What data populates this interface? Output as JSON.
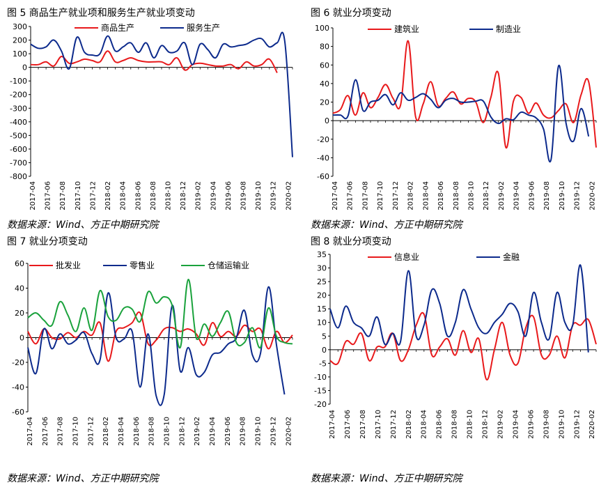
{
  "chart_data": [
    {
      "type": "line",
      "title": "图 5   商品生产就业项和服务生产就业项变动",
      "source": "数据来源：Wind、方正中期研究院",
      "ylim": [
        -800,
        300
      ],
      "yticks": [
        300,
        200,
        100,
        0,
        -100,
        -200,
        -300,
        -400,
        -500,
        -600,
        -700,
        -800
      ],
      "xlabels": [
        "2017-04",
        "2017-06",
        "2017-08",
        "2017-10",
        "2017-12",
        "2018-02",
        "2018-04",
        "2018-06",
        "2018-08",
        "2018-10",
        "2018-12",
        "2019-02",
        "2019-04",
        "2019-06",
        "2019-08",
        "2019-10",
        "2019-12",
        "2020-02"
      ],
      "series": [
        {
          "name": "商品生产",
          "color": "#e8191b",
          "values": [
            20,
            20,
            40,
            10,
            80,
            30,
            40,
            60,
            50,
            40,
            120,
            40,
            50,
            70,
            50,
            40,
            40,
            40,
            20,
            70,
            -20,
            20,
            30,
            20,
            10,
            10,
            20,
            -10,
            40,
            10,
            20,
            60,
            -40
          ]
        },
        {
          "name": "服务生产",
          "color": "#0c2a8c",
          "values": [
            170,
            140,
            150,
            200,
            120,
            -10,
            220,
            110,
            90,
            100,
            230,
            120,
            150,
            180,
            110,
            180,
            70,
            160,
            110,
            120,
            180,
            20,
            170,
            130,
            70,
            170,
            150,
            160,
            170,
            200,
            210,
            150,
            180,
            190,
            -660
          ]
        }
      ]
    },
    {
      "type": "line",
      "title": "图 6   就业分项变动",
      "source": "数据来源：Wind、方正中期研究院",
      "ylim": [
        -60,
        100
      ],
      "yticks": [
        100,
        80,
        60,
        40,
        20,
        0,
        -20,
        -40,
        -60
      ],
      "xlabels": [
        "2017-04",
        "2017-06",
        "2017-08",
        "2017-10",
        "2017-12",
        "2018-02",
        "2018-04",
        "2018-06",
        "2018-08",
        "2018-10",
        "2018-12",
        "2019-02",
        "2019-04",
        "2019-06",
        "2019-08",
        "2019-10",
        "2019-12",
        "2020-02"
      ],
      "series": [
        {
          "name": "建筑业",
          "color": "#e8191b",
          "values": [
            8,
            12,
            27,
            6,
            30,
            14,
            25,
            39,
            24,
            17,
            86,
            4,
            18,
            42,
            16,
            24,
            31,
            18,
            24,
            20,
            -2,
            25,
            51,
            -29,
            21,
            25,
            8,
            19,
            6,
            3,
            11,
            18,
            -2,
            28,
            42,
            -29
          ]
        },
        {
          "name": "制造业",
          "color": "#0c2a8c",
          "values": [
            6,
            6,
            5,
            44,
            11,
            20,
            22,
            28,
            17,
            30,
            22,
            25,
            29,
            23,
            14,
            22,
            24,
            20,
            20,
            21,
            21,
            4,
            -3,
            2,
            1,
            9,
            6,
            3,
            -9,
            -42,
            59,
            -3,
            -22,
            13,
            -17
          ]
        }
      ]
    },
    {
      "type": "line",
      "title": "图 7   就业分项变动",
      "source": "数据来源：Wind、方正中期研究院",
      "ylim": [
        -60,
        60
      ],
      "yticks": [
        60,
        40,
        20,
        0,
        -20,
        -40,
        -60
      ],
      "xlabels": [
        "2017-04",
        "2017-06",
        "2017-08",
        "2017-10",
        "2017-12",
        "2018-02",
        "2018-04",
        "2018-06",
        "2018-08",
        "2018-10",
        "2018-12",
        "2019-02",
        "2019-04",
        "2019-06",
        "2019-08",
        "2019-10",
        "2019-12",
        "2020-02"
      ],
      "series": [
        {
          "name": "批发业",
          "color": "#e8191b",
          "values": [
            5,
            -5,
            7,
            0,
            -1,
            4,
            0,
            5,
            2,
            12,
            -19,
            5,
            8,
            12,
            20,
            -5,
            -2,
            7,
            8,
            5,
            7,
            3,
            -6,
            12,
            1,
            5,
            1,
            10,
            5,
            7,
            -9,
            5,
            -4,
            2
          ]
        },
        {
          "name": "零售业",
          "color": "#0c2a8c",
          "values": [
            -8,
            -29,
            7,
            -9,
            3,
            -5,
            -2,
            4,
            -13,
            -18,
            36,
            0,
            -1,
            5,
            -40,
            3,
            -47,
            -46,
            26,
            -27,
            -8,
            -30,
            -28,
            -14,
            -12,
            -5,
            0,
            22,
            -14,
            -13,
            41,
            -6,
            -46
          ]
        },
        {
          "name": "仓储运输业",
          "color": "#1aa23c",
          "values": [
            16,
            20,
            14,
            10,
            29,
            18,
            5,
            24,
            6,
            38,
            17,
            14,
            24,
            23,
            13,
            37,
            28,
            33,
            26,
            -8,
            47,
            0,
            11,
            1,
            12,
            21,
            -4,
            -4,
            8,
            -8,
            24,
            1,
            -4,
            -5
          ]
        }
      ]
    },
    {
      "type": "line",
      "title": "图 8   就业分项变动",
      "source": "数据来源：Wind、方正中期研究院",
      "ylim": [
        -20,
        35
      ],
      "yticks": [
        35,
        30,
        25,
        20,
        15,
        10,
        5,
        0,
        -5,
        -10,
        -15,
        -20
      ],
      "xlabels": [
        "2017-04",
        "2017-06",
        "2017-08",
        "2017-10",
        "2017-12",
        "2018-02",
        "2018-04",
        "2018-06",
        "2018-08",
        "2018-10",
        "2018-12",
        "2019-02",
        "2019-04",
        "2019-06",
        "2019-08",
        "2019-10",
        "2019-12",
        "2020-02"
      ],
      "series": [
        {
          "name": "信息业",
          "color": "#e8191b",
          "values": [
            -4,
            -5,
            3,
            2,
            6,
            -4,
            1,
            1,
            6,
            -4,
            0,
            9,
            13,
            -2,
            1,
            4,
            -2,
            7,
            -1,
            4,
            -11,
            0,
            10,
            -2,
            -5,
            8,
            12,
            -2,
            -2,
            5,
            -3,
            9,
            9,
            11,
            2
          ]
        },
        {
          "name": "金融",
          "color": "#0c2a8c",
          "values": [
            15,
            8,
            16,
            10,
            8,
            5,
            12,
            2,
            6,
            3,
            29,
            5,
            9,
            22,
            17,
            5,
            10,
            22,
            15,
            8,
            6,
            10,
            13,
            17,
            14,
            5,
            21,
            10,
            4,
            21,
            10,
            9,
            31,
            -1
          ]
        }
      ]
    }
  ]
}
